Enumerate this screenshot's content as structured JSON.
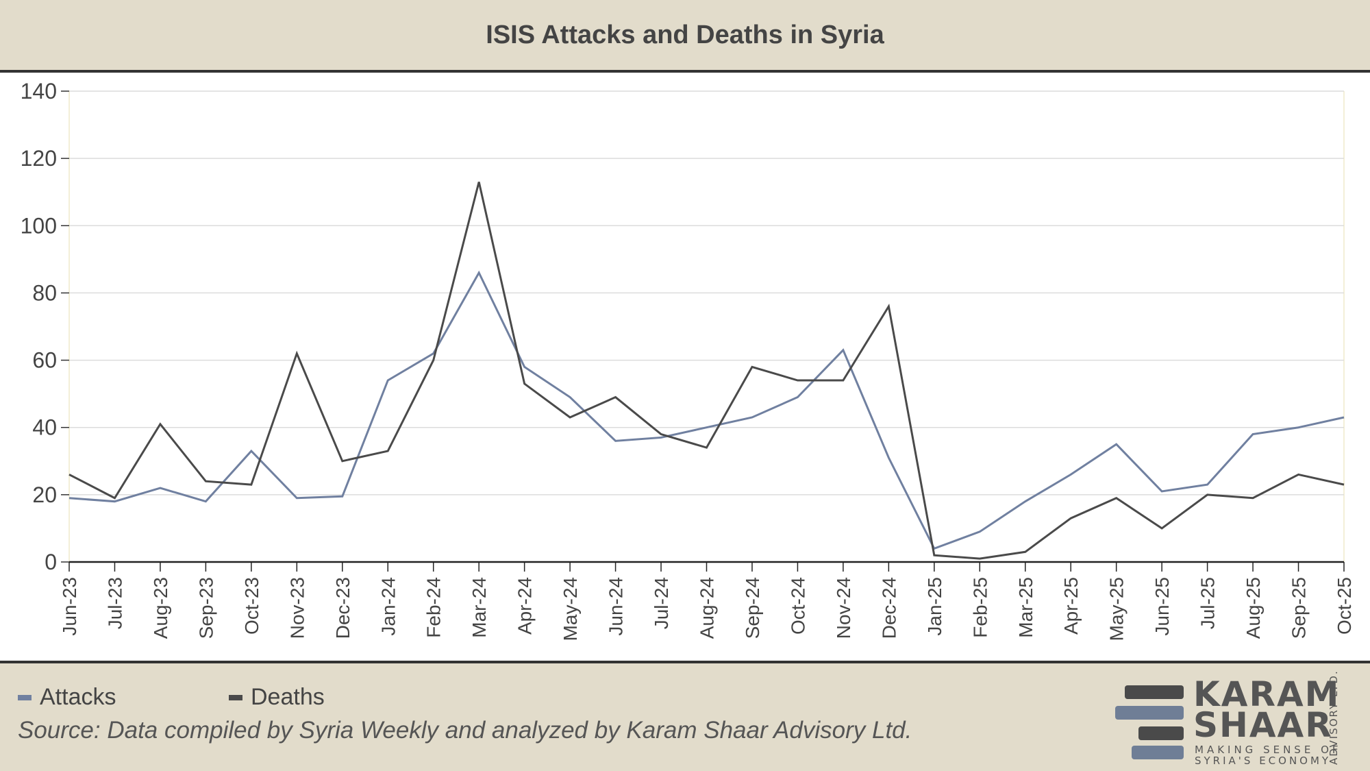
{
  "title": "ISIS Attacks and Deaths in Syria",
  "chart_data": {
    "type": "line",
    "title": "ISIS Attacks and Deaths in Syria",
    "xlabel": "",
    "ylabel": "",
    "ylim": [
      0,
      140
    ],
    "yticks": [
      0,
      20,
      40,
      60,
      80,
      100,
      120,
      140
    ],
    "grid": true,
    "legend_position": "bottom-left",
    "categories": [
      "Jun-23",
      "Jul-23",
      "Aug-23",
      "Sep-23",
      "Oct-23",
      "Nov-23",
      "Dec-23",
      "Jan-24",
      "Feb-24",
      "Mar-24",
      "Apr-24",
      "May-24",
      "Jun-24",
      "Jul-24",
      "Aug-24",
      "Sep-24",
      "Oct-24",
      "Nov-24",
      "Dec-24",
      "Jan-25",
      "Feb-25",
      "Mar-25",
      "Apr-25",
      "May-25",
      "Jun-25",
      "Jul-25",
      "Aug-25",
      "Sep-25",
      "Oct-25"
    ],
    "series": [
      {
        "name": "Attacks",
        "color": "#7080a0",
        "values": [
          19,
          18,
          22,
          18,
          33,
          19,
          19.5,
          54,
          62,
          86,
          58,
          49,
          36,
          37,
          40,
          43,
          49,
          63,
          31,
          4,
          9,
          18,
          26,
          35,
          21,
          23,
          38,
          40,
          43
        ]
      },
      {
        "name": "Deaths",
        "color": "#4a4a4a",
        "values": [
          26,
          19,
          41,
          24,
          23,
          62,
          30,
          33,
          60,
          113,
          53,
          43,
          49,
          38,
          34,
          58,
          54,
          54,
          76,
          2,
          1,
          3,
          13,
          19,
          10,
          20,
          19,
          26,
          23
        ]
      }
    ]
  },
  "source": "Source: Data compiled by Syria Weekly and analyzed by Karam Shaar Advisory Ltd.",
  "logo": {
    "line1": "KARAM",
    "line2": "SHAAR",
    "tagline1": "MAKING SENSE OF",
    "tagline2": "SYRIA'S ECONOMY",
    "side": "ADVISORY LTD."
  }
}
